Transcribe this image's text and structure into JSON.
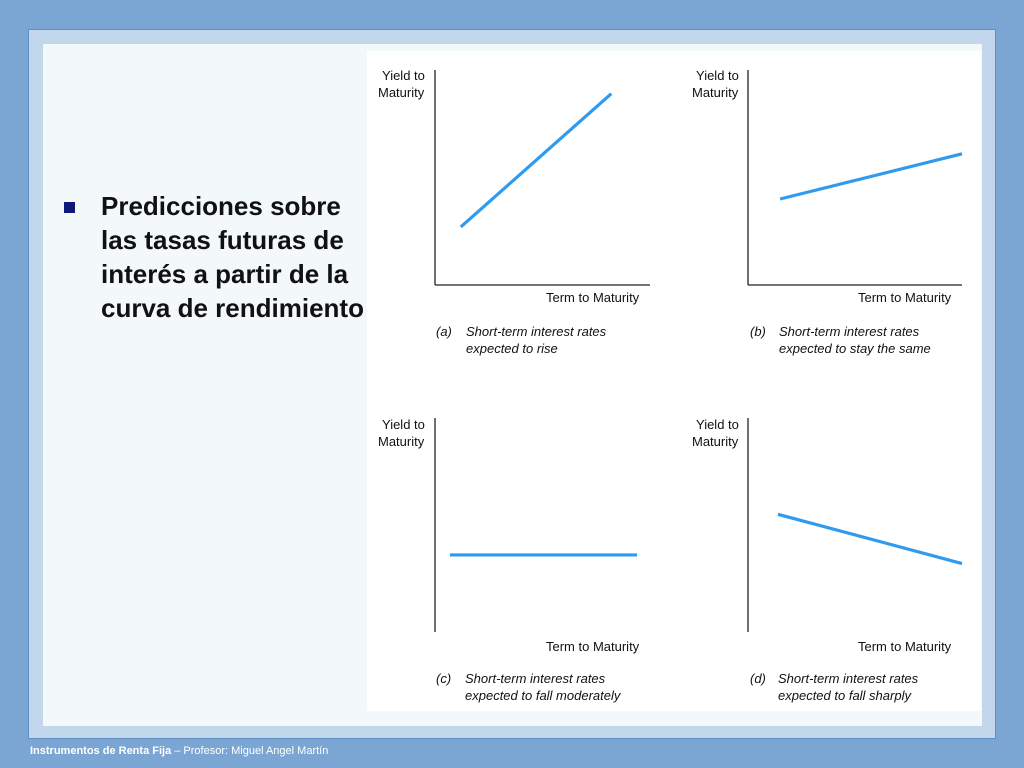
{
  "slide": {
    "bullet_text": "Predicciones sobre las tasas futuras de interés a partir de la curva de rendimiento",
    "footer_course": "Instrumentos de Renta Fija",
    "footer_rest": " – Profesor: Miguel Angel Martín"
  },
  "colors": {
    "background": "#7ba6d4",
    "line": "#2f9bf0",
    "bullet": "#0d1a7a"
  },
  "chart_data": [
    {
      "type": "line",
      "ylabel": "Yield to Maturity",
      "xlabel": "Term to Maturity",
      "caption_letter": "(a)",
      "caption_line1": "Short-term interest rates",
      "caption_line2": "expected to rise",
      "x": [
        0.12,
        0.82
      ],
      "y": [
        0.27,
        0.89
      ],
      "xlim": [
        0,
        1
      ],
      "ylim": [
        0,
        1
      ]
    },
    {
      "type": "line",
      "ylabel": "Yield to Maturity",
      "xlabel": "Term to Maturity",
      "caption_letter": "(b)",
      "caption_line1": "Short-term interest rates",
      "caption_line2": "expected to stay the same",
      "x": [
        0.15,
        1.0
      ],
      "y": [
        0.4,
        0.61
      ],
      "xlim": [
        0,
        1
      ],
      "ylim": [
        0,
        1
      ]
    },
    {
      "type": "line",
      "ylabel": "Yield to Maturity",
      "xlabel": "Term to Maturity",
      "caption_letter": "(c)",
      "caption_line1": "Short-term interest rates",
      "caption_line2": "expected to fall moderately",
      "x": [
        0.07,
        0.94
      ],
      "y": [
        0.36,
        0.36
      ],
      "xlim": [
        0,
        1
      ],
      "ylim": [
        0,
        1
      ]
    },
    {
      "type": "line",
      "ylabel": "Yield to Maturity",
      "xlabel": "Term to Maturity",
      "caption_letter": "(d)",
      "caption_line1": "Short-term interest rates",
      "caption_line2": "expected to fall sharply",
      "x": [
        0.14,
        1.0
      ],
      "y": [
        0.55,
        0.32
      ],
      "xlim": [
        0,
        1
      ],
      "ylim": [
        0,
        1
      ]
    }
  ]
}
